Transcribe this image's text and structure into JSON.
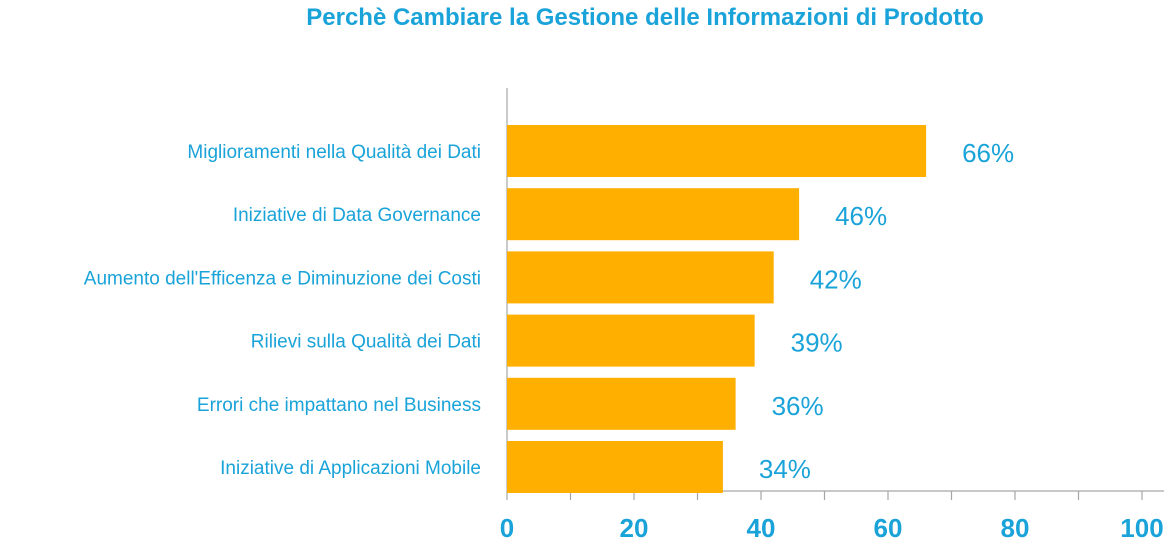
{
  "colors": {
    "text": "#1aa3d9",
    "bar": "#ffaf00",
    "axis": "#a6a6a6"
  },
  "chart_data": {
    "type": "bar",
    "orientation": "horizontal",
    "title": "Perchè Cambiare la Gestione delle Informazioni di Prodotto",
    "xlabel": "",
    "ylabel": "",
    "categories": [
      "Miglioramenti nella Qualità dei Dati",
      "Iniziative di Data Governance",
      "Aumento dell'Efficenza e Diminuzione dei Costi",
      "Rilievi sulla Qualità dei Dati",
      "Errori che impattano nel Business",
      "Iniziative di Applicazioni Mobile"
    ],
    "values": [
      66,
      46,
      42,
      39,
      36,
      34
    ],
    "value_labels": [
      "66%",
      "46%",
      "42%",
      "39%",
      "36%",
      "34%"
    ],
    "xlim": [
      0,
      100
    ],
    "x_ticks": [
      0,
      20,
      40,
      60,
      80,
      100
    ],
    "x_tick_labels": [
      "0",
      "20",
      "40",
      "60",
      "80",
      "100"
    ],
    "grid": false,
    "legend": "none"
  }
}
